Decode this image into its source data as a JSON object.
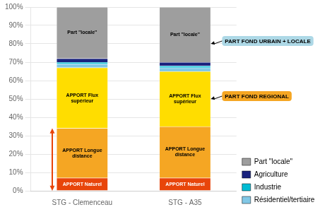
{
  "chart_data": {
    "type": "bar",
    "stacked": true,
    "categories": [
      "STG - Clemenceau",
      "STG - A35"
    ],
    "series": [
      {
        "name": "APPORT Naturel",
        "color": "#E8450A",
        "values": [
          7,
          7
        ],
        "segment_labels": [
          "APPORT Naturel",
          "APPORT Naturel"
        ]
      },
      {
        "name": "APPORT Longue\ndistance",
        "color": "#F5A623",
        "values": [
          27,
          28
        ],
        "segment_labels": [
          "APPORT Longue\ndistance",
          "APPORT Longue\ndistance"
        ]
      },
      {
        "name": "APPORT Flux\nsupérieur",
        "color": "#FFDD00",
        "values": [
          33,
          30
        ],
        "segment_labels": [
          "APPORT Flux\nsupérieur",
          "APPORT Flux\nsupérieur"
        ]
      },
      {
        "name": "Résidentiel/tertiaire",
        "color": "#82C8E6",
        "values": [
          2,
          2
        ],
        "segment_labels": [
          null,
          null
        ]
      },
      {
        "name": "Industrie",
        "color": "#00BCD4",
        "values": [
          1,
          1
        ],
        "segment_labels": [
          null,
          null
        ]
      },
      {
        "name": "Agriculture",
        "color": "#1A237E",
        "values": [
          2,
          2
        ],
        "segment_labels": [
          null,
          null
        ]
      },
      {
        "name": "Part \"locale\"",
        "color": "#9E9E9E",
        "values": [
          28,
          30
        ],
        "segment_labels": [
          "Part \"locale\"",
          "Part \"locale\""
        ]
      }
    ],
    "ylim": [
      0,
      100
    ],
    "yticks": [
      {
        "value": 0,
        "label": "0%"
      },
      {
        "value": 10,
        "label": "10%"
      },
      {
        "value": 20,
        "label": "20%"
      },
      {
        "value": 30,
        "label": "30%"
      },
      {
        "value": 40,
        "label": "40%"
      },
      {
        "value": 50,
        "label": "50%"
      },
      {
        "value": 60,
        "label": "60%"
      },
      {
        "value": 70,
        "label": "70%"
      },
      {
        "value": 80,
        "label": "80%"
      },
      {
        "value": 90,
        "label": "90%"
      },
      {
        "value": 100,
        "label": "100%"
      }
    ],
    "grid": "y",
    "legend": "lower right",
    "legend_entries": [
      "Part \"locale\"",
      "Agriculture",
      "Industrie",
      "Résidentiel/tertiaire"
    ],
    "annotations": [
      {
        "type": "double_arrow",
        "category": "STG - Clemenceau",
        "from": 0,
        "to": 34,
        "color": "#E8450A"
      },
      {
        "type": "callout",
        "text": "PART FOND REGIONAL",
        "category": "STG - A35",
        "y": 50,
        "color": "#F5A623"
      },
      {
        "type": "callout",
        "text": "PART FOND URBAIN + LOCALE",
        "category": "STG - A35",
        "y": 80,
        "color": "#ADD8E6"
      }
    ]
  }
}
